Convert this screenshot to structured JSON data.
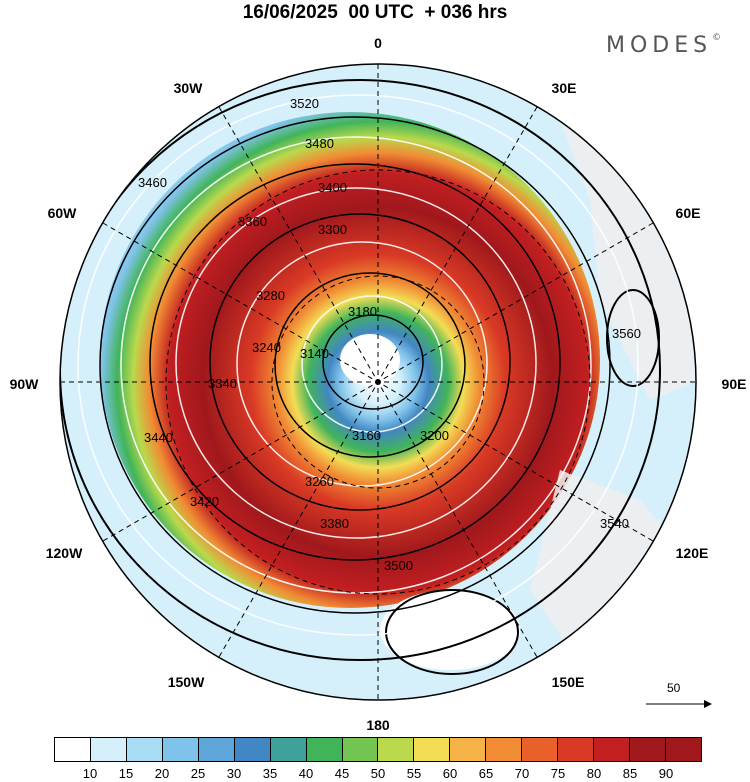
{
  "header": {
    "title": "16/06/2025  00 UTC  + 036 hrs",
    "brand": "MODES"
  },
  "map": {
    "projection": "polar-stereographic-south",
    "longitude_labels": [
      "0",
      "30E",
      "60E",
      "90E",
      "120E",
      "150E",
      "180",
      "150W",
      "120W",
      "90W",
      "60W",
      "30W"
    ],
    "contour_labels": [
      "3520",
      "3480",
      "3460",
      "3400",
      "3360",
      "3300",
      "3280",
      "3240",
      "3180",
      "3140",
      "3160",
      "3200",
      "3260",
      "3340",
      "3380",
      "3420",
      "3440",
      "3500",
      "3540",
      "3560"
    ],
    "colors": {
      "ocean_border": "#000000",
      "land": "#eeeeee",
      "jet_core": "#8b1a1a",
      "low_core": "#ffffff"
    },
    "vector_reference": {
      "label": "50",
      "value": 50
    }
  },
  "colorbar": {
    "colors": [
      "#ffffff",
      "#d6f0fb",
      "#a9dcf5",
      "#80c3ea",
      "#5ea5da",
      "#4286c3",
      "#3fa29a",
      "#41b45a",
      "#73c450",
      "#bad94c",
      "#f2dd55",
      "#f6b347",
      "#f18b34",
      "#e9602b",
      "#d93a25",
      "#c21f21",
      "#a0181c"
    ],
    "labels": [
      "10",
      "15",
      "20",
      "25",
      "30",
      "35",
      "40",
      "45",
      "50",
      "55",
      "60",
      "65",
      "70",
      "75",
      "80",
      "85",
      "90"
    ]
  }
}
